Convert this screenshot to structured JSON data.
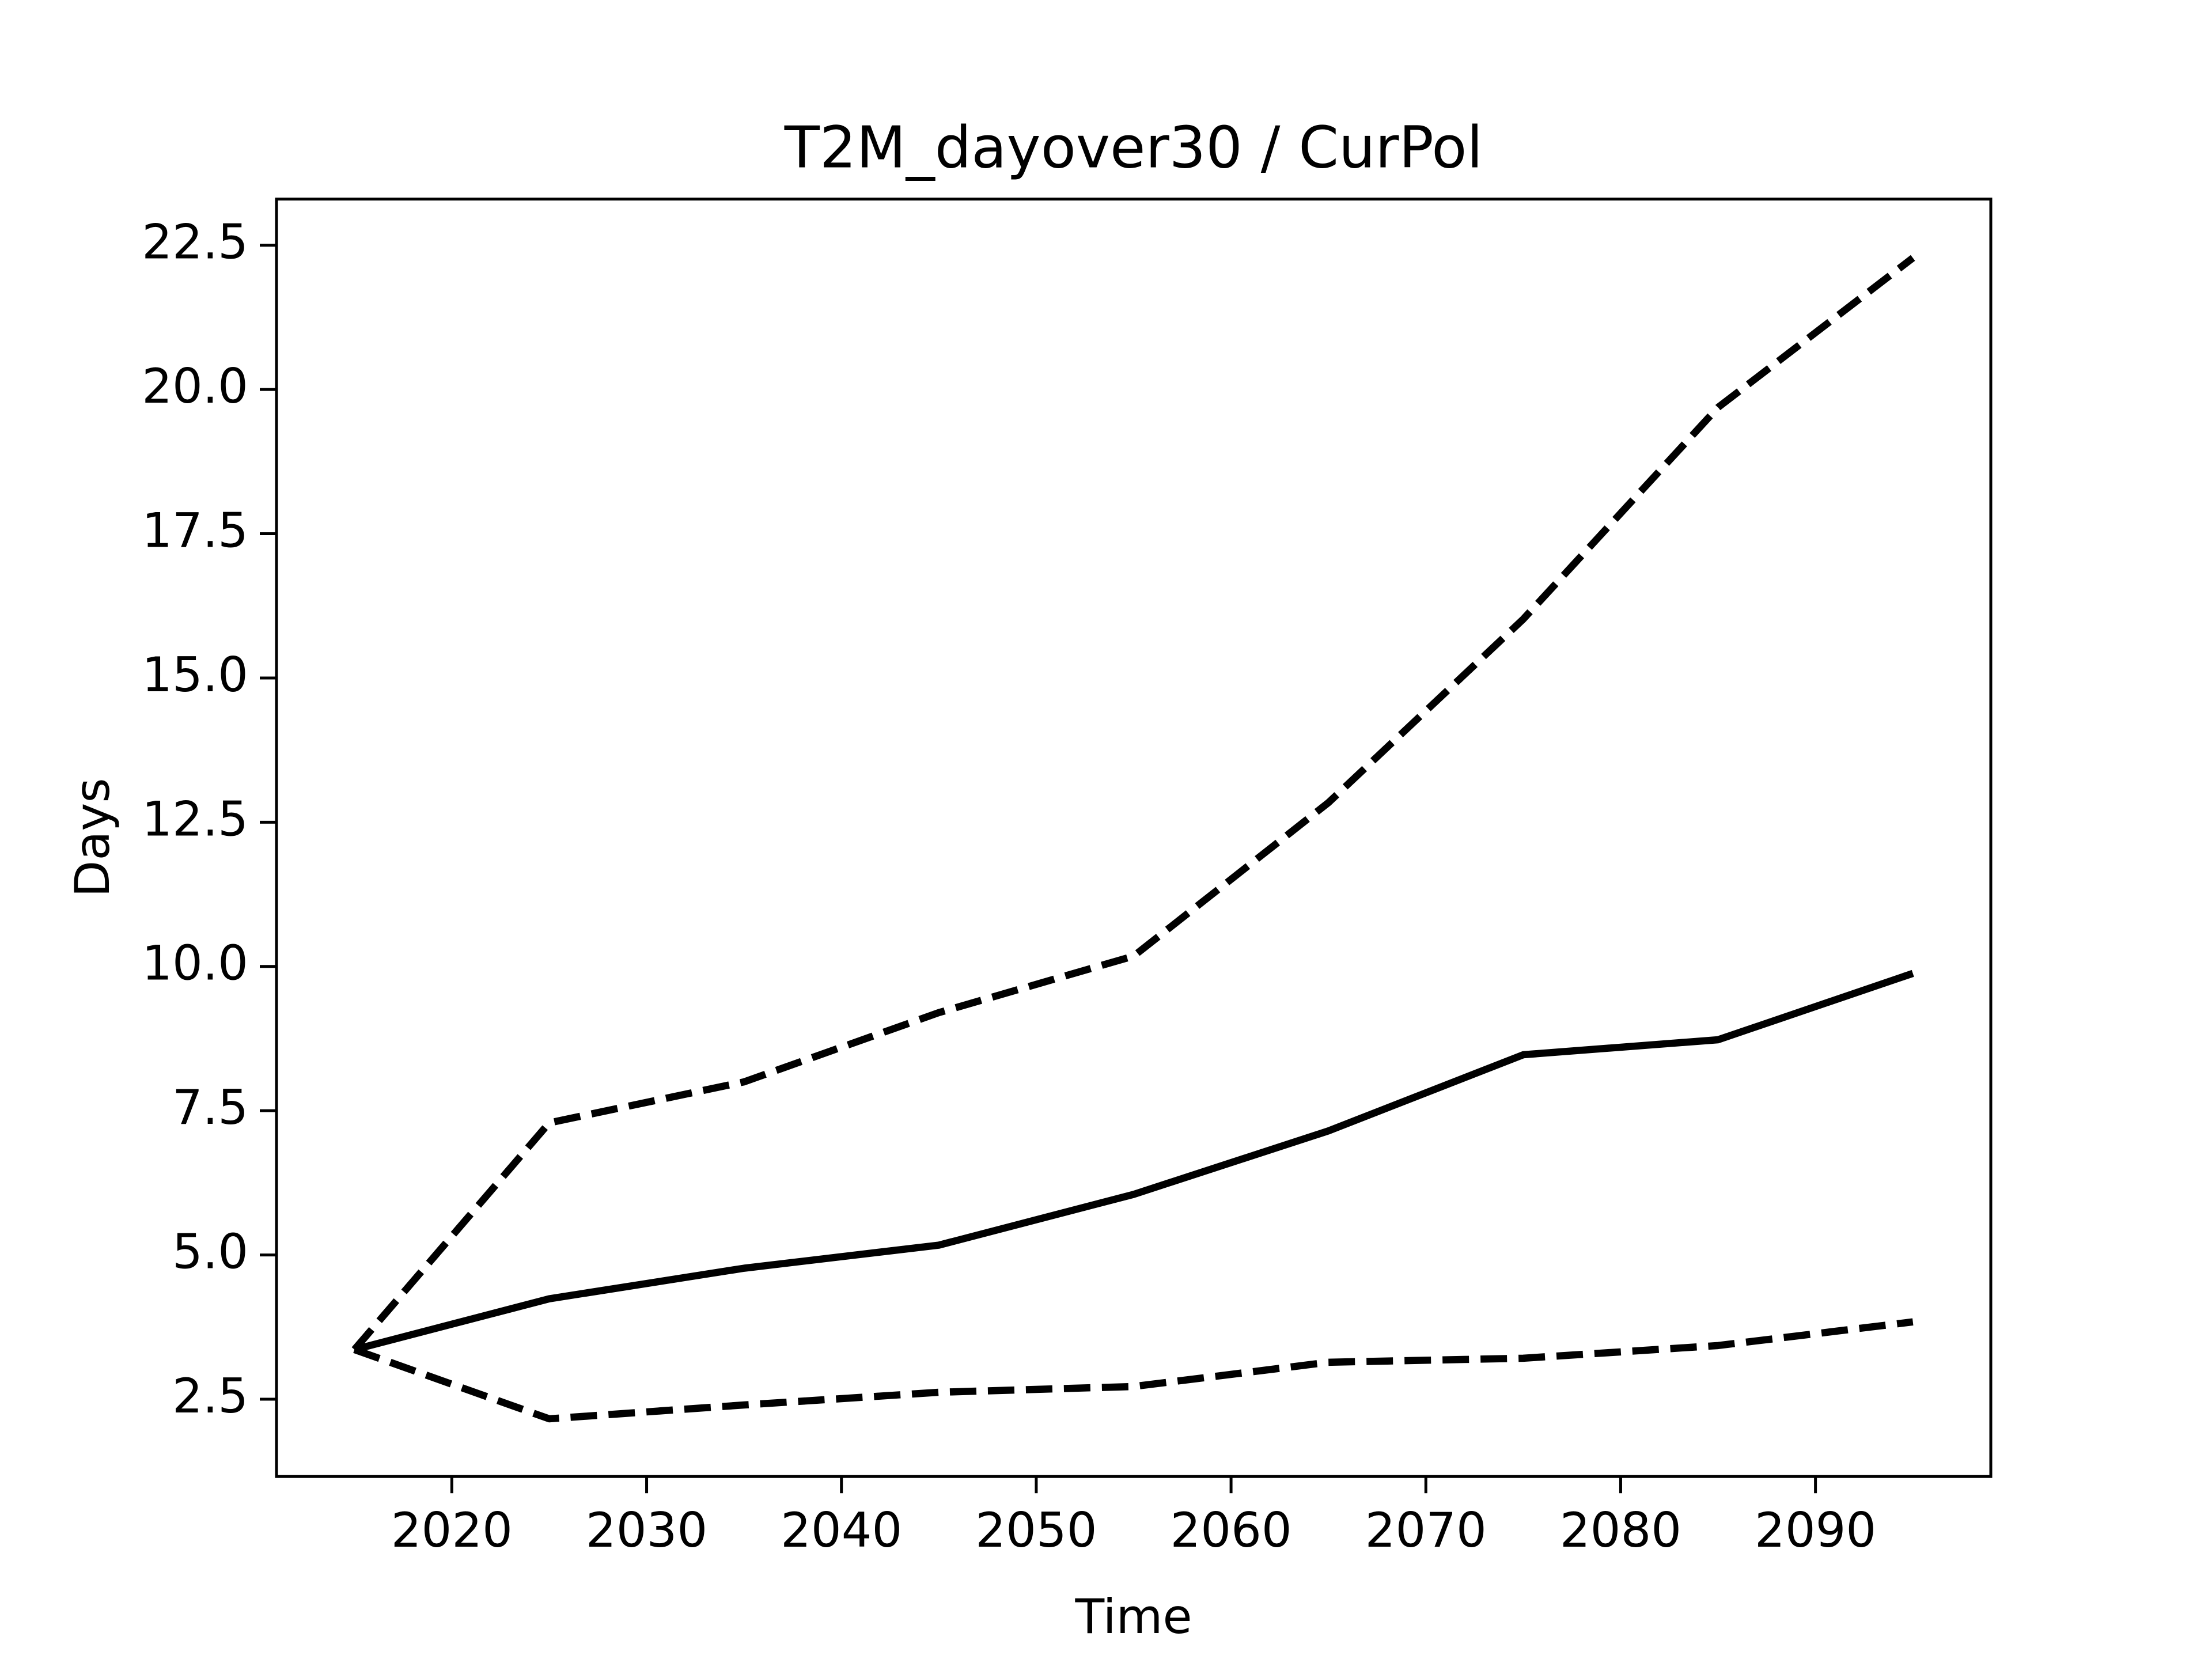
{
  "chart_data": {
    "type": "line",
    "title": "T2M_dayover30 / CurPol",
    "xlabel": "Time",
    "ylabel": "Days",
    "x": [
      2015,
      2025,
      2035,
      2045,
      2055,
      2065,
      2075,
      2085,
      2095
    ],
    "series": [
      {
        "color": "#000000",
        "linestyle": "dashed",
        "values": [
          3.36,
          7.29,
          8.0,
          9.2,
          10.18,
          12.84,
          16.02,
          19.69,
          22.28
        ]
      },
      {
        "color": "#000000",
        "linestyle": "solid",
        "values": [
          3.36,
          4.24,
          4.77,
          5.17,
          6.05,
          7.15,
          8.47,
          8.73,
          9.88
        ]
      },
      {
        "color": "#000000",
        "linestyle": "dashed",
        "values": [
          3.36,
          2.16,
          2.4,
          2.62,
          2.72,
          3.14,
          3.21,
          3.43,
          3.84
        ]
      }
    ],
    "xlim": [
      2011,
      2099
    ],
    "xticks": [
      2020,
      2030,
      2040,
      2050,
      2060,
      2070,
      2080,
      2090
    ],
    "ylim": [
      1.16,
      23.3
    ],
    "yticks": [
      {
        "value": 2.5,
        "label": "2.5"
      },
      {
        "value": 5,
        "label": "5.0"
      },
      {
        "value": 7.5,
        "label": "7.5"
      },
      {
        "value": 10,
        "label": "10.0"
      },
      {
        "value": 12.5,
        "label": "12.5"
      },
      {
        "value": 15,
        "label": "15.0"
      },
      {
        "value": 17.5,
        "label": "17.5"
      },
      {
        "value": 20,
        "label": "20.0"
      },
      {
        "value": 22.5,
        "label": "22.5"
      }
    ],
    "grid": false
  }
}
